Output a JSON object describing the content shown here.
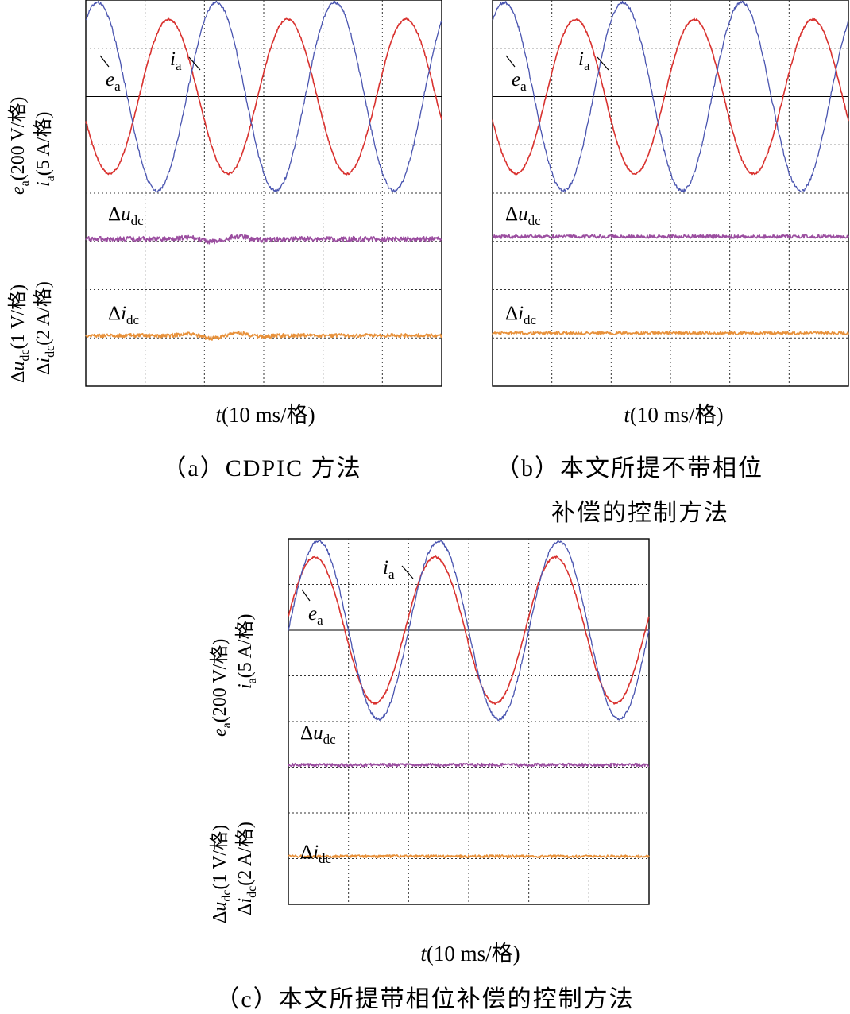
{
  "chart_data": [
    {
      "type": "line",
      "caption": "（a）CDPIC 方法",
      "x_axis": {
        "label_var": "t",
        "label_unit": "(10 ms/格)",
        "divisions": 6
      },
      "y_axis": {
        "divisions": 8,
        "upper_label_line1": "e_a(200 V/格)",
        "upper_label_line2": "i_a(5 A/格)",
        "lower_label_line1": "Δu_dc(1 V/格)",
        "lower_label_line2": "Δi_dc(2 A/格)"
      },
      "grid": true,
      "series": [
        {
          "name": "e_a",
          "label_main": "e",
          "label_sub": "a",
          "color": "#d9322f",
          "kind": "sine",
          "baseline_div": 2,
          "amplitude_div": 1.6,
          "cycles": 3,
          "phase": 0.55,
          "noise": 0.02
        },
        {
          "name": "i_a",
          "label_main": "i",
          "label_sub": "a",
          "color": "#4a55b0",
          "kind": "sine",
          "baseline_div": 2,
          "amplitude_div": 1.95,
          "cycles": 3,
          "phase": 0.15,
          "noise": 0.03
        },
        {
          "name": "Δu_dc",
          "label_main": "Δu",
          "label_sub": "dc",
          "color": "#9b4ea0",
          "kind": "flat",
          "baseline_div": 4.95,
          "noise": 0.05
        },
        {
          "name": "Δi_dc",
          "label_main": "Δi",
          "label_sub": "dc",
          "color": "#e8913a",
          "kind": "flat",
          "baseline_div": 6.95,
          "noise": 0.04
        }
      ]
    },
    {
      "type": "line",
      "caption_line1": "（b）本文所提不带相位",
      "caption_line2": "补偿的控制方法",
      "x_axis": {
        "label_var": "t",
        "label_unit": "(10 ms/格)",
        "divisions": 6
      },
      "y_axis": {
        "divisions": 8
      },
      "grid": true,
      "series": [
        {
          "name": "e_a",
          "label_main": "e",
          "label_sub": "a",
          "color": "#d9322f",
          "kind": "sine",
          "baseline_div": 2,
          "amplitude_div": 1.6,
          "cycles": 3,
          "phase": 0.55,
          "noise": 0.02
        },
        {
          "name": "i_a",
          "label_main": "i",
          "label_sub": "a",
          "color": "#4a55b0",
          "kind": "sine",
          "baseline_div": 2,
          "amplitude_div": 1.95,
          "cycles": 3,
          "phase": 0.15,
          "noise": 0.03
        },
        {
          "name": "Δu_dc",
          "label_main": "Δu",
          "label_sub": "dc",
          "color": "#9b4ea0",
          "kind": "flat",
          "baseline_div": 4.9,
          "noise": 0.035
        },
        {
          "name": "Δi_dc",
          "label_main": "Δi",
          "label_sub": "dc",
          "color": "#e8913a",
          "kind": "flat",
          "baseline_div": 6.9,
          "noise": 0.03
        }
      ]
    },
    {
      "type": "line",
      "caption": "（c）本文所提带相位补偿的控制方法",
      "x_axis": {
        "label_var": "t",
        "label_unit": "(10 ms/格)",
        "divisions": 6
      },
      "y_axis": {
        "divisions": 8,
        "upper_label_line1": "e_a(200 V/格)",
        "upper_label_line2": "i_a(5 A/格)",
        "lower_label_line1": "Δu_dc(1 V/格)",
        "lower_label_line2": "Δi_dc(2 A/格)"
      },
      "grid": true,
      "series": [
        {
          "name": "e_a",
          "label_main": "e",
          "label_sub": "a",
          "color": "#d9322f",
          "kind": "sine",
          "baseline_div": 2,
          "amplitude_div": 1.6,
          "cycles": 3,
          "phase": 0.03,
          "noise": 0.02
        },
        {
          "name": "i_a",
          "label_main": "i",
          "label_sub": "a",
          "color": "#4a55b0",
          "kind": "sine",
          "baseline_div": 2,
          "amplitude_div": 1.95,
          "cycles": 3,
          "phase": 0.0,
          "noise": 0.03
        },
        {
          "name": "Δu_dc",
          "label_main": "Δu",
          "label_sub": "dc",
          "color": "#9b4ea0",
          "kind": "flat",
          "baseline_div": 4.95,
          "noise": 0.035
        },
        {
          "name": "Δi_dc",
          "label_main": "Δi",
          "label_sub": "dc",
          "color": "#e8913a",
          "kind": "flat",
          "baseline_div": 6.95,
          "noise": 0.03
        }
      ]
    }
  ]
}
